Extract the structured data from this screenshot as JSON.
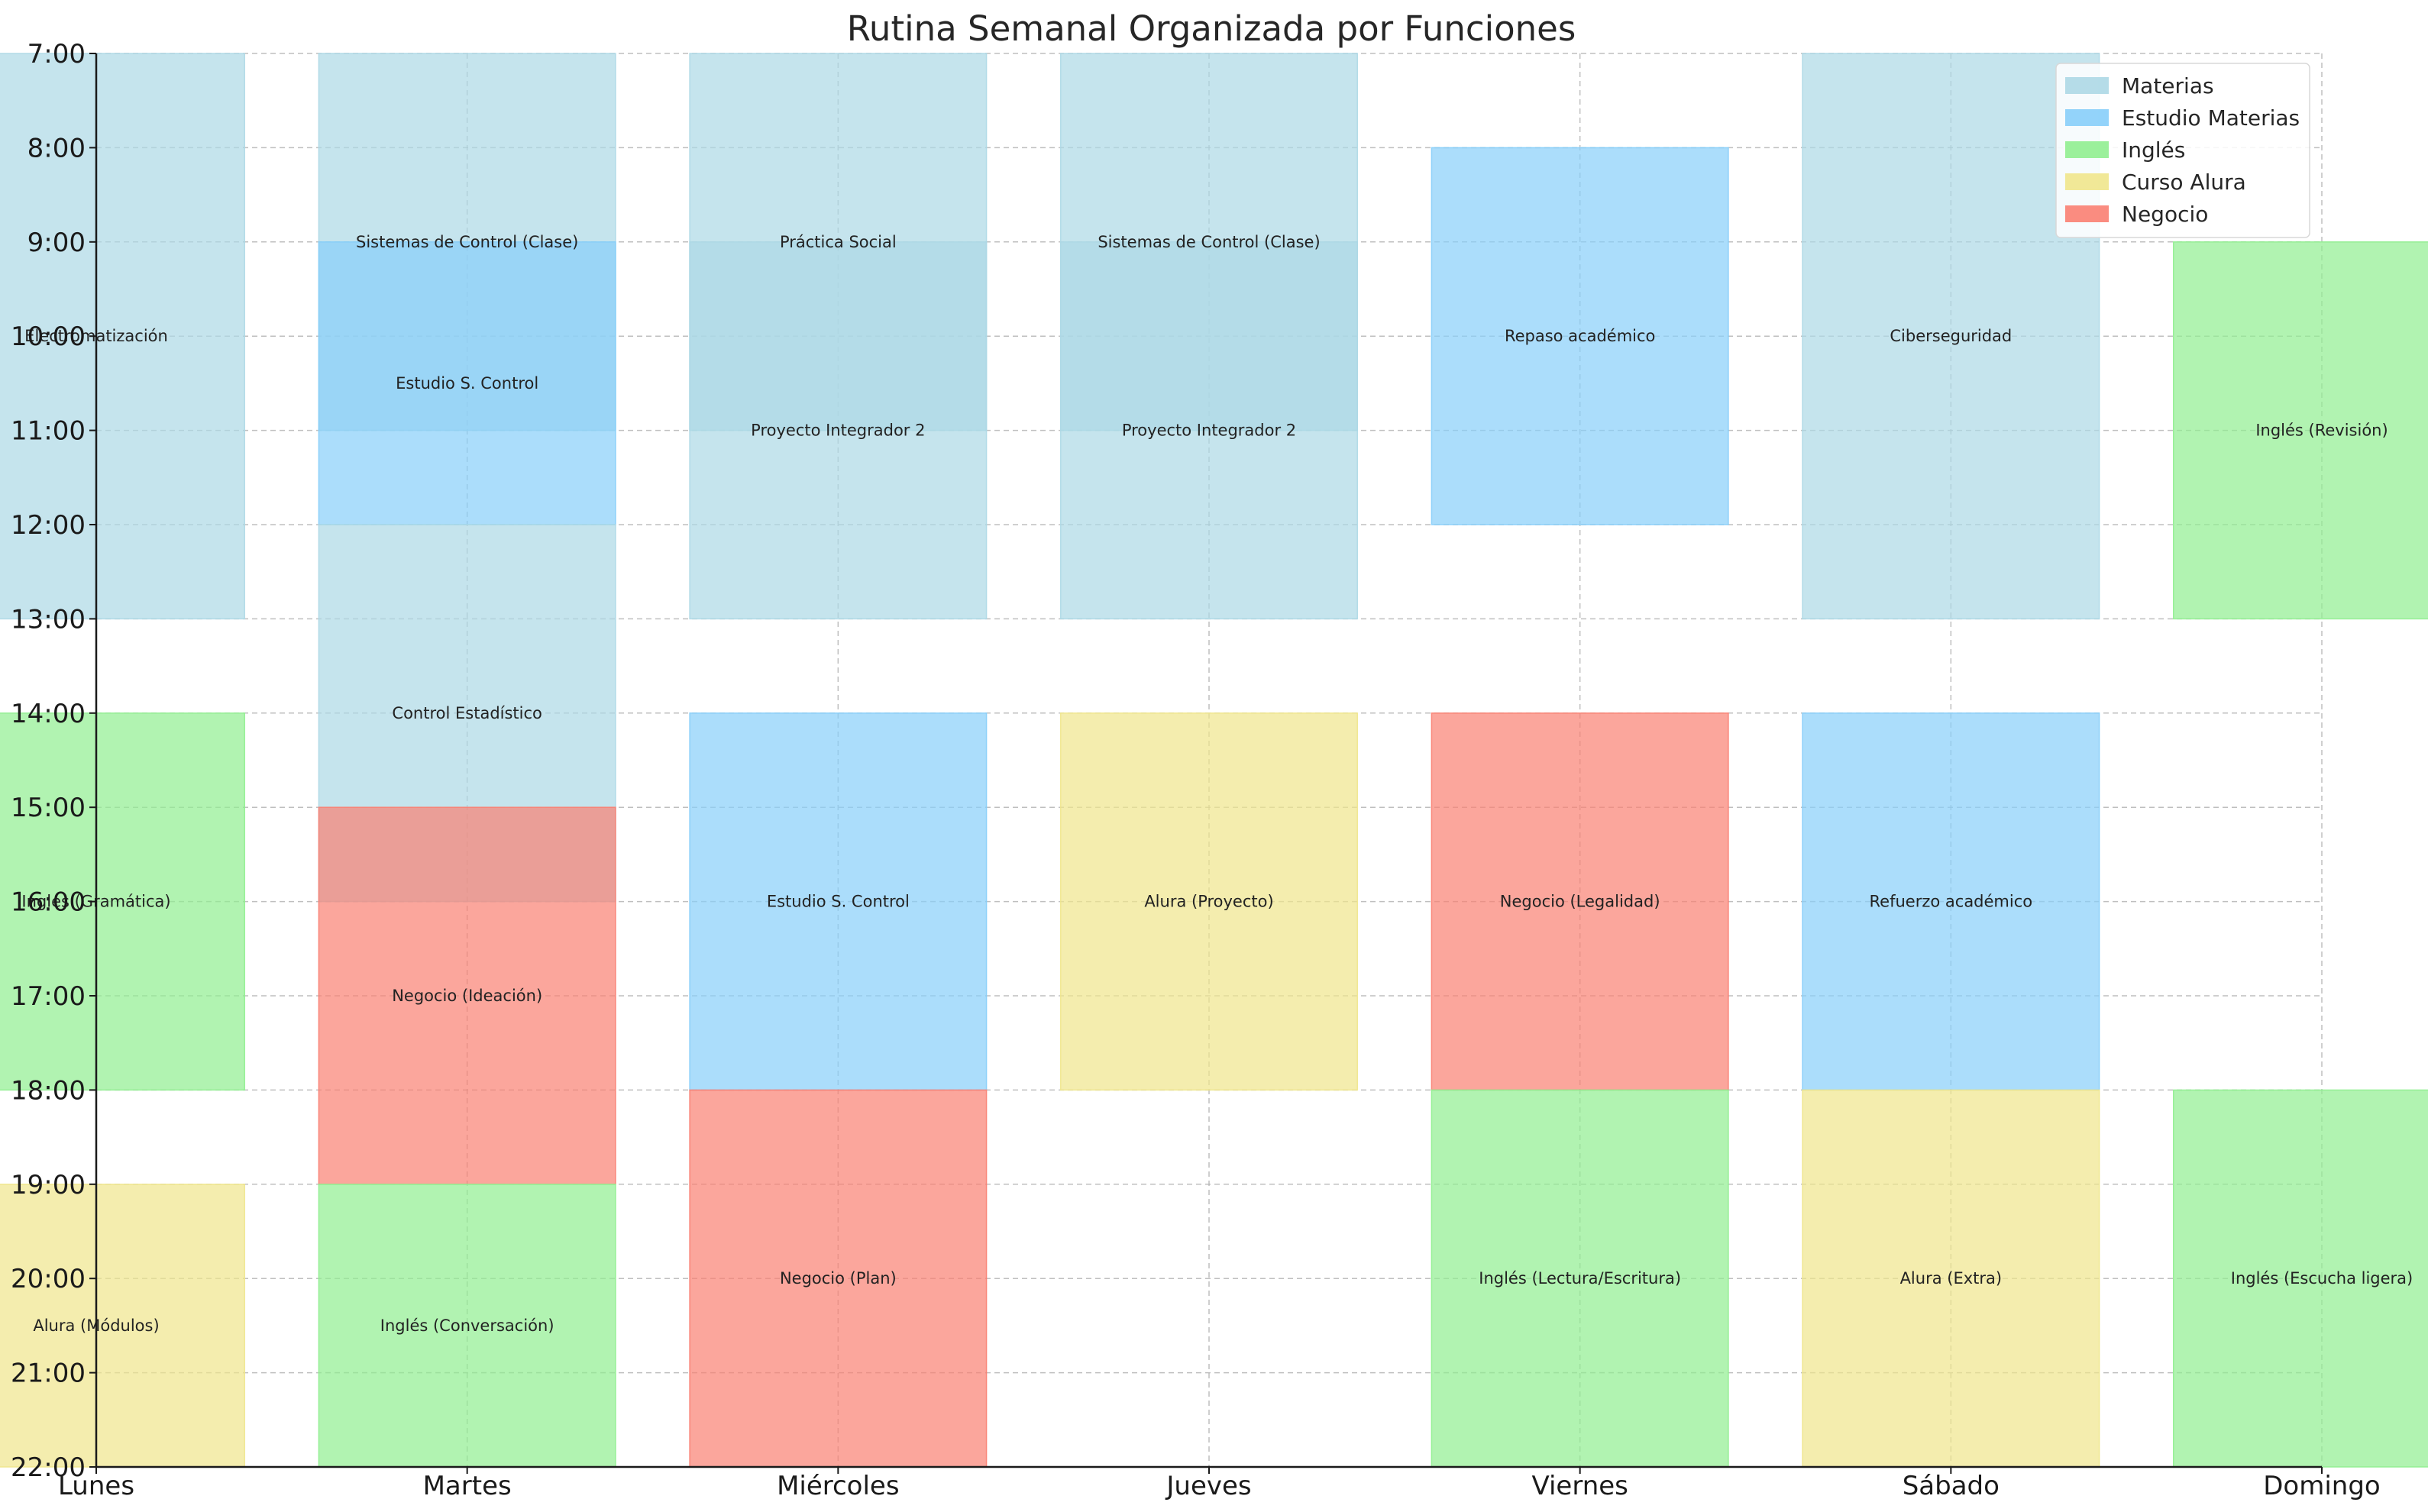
{
  "chart_data": {
    "type": "bar",
    "orientation": "vertical-timeline",
    "title": "Rutina Semanal Organizada por Funciones",
    "xlabel": "",
    "ylabel": "",
    "categories": [
      "Lunes",
      "Martes",
      "Miércoles",
      "Jueves",
      "Viernes",
      "Sábado",
      "Domingo"
    ],
    "y_ticks": [
      "7:00",
      "8:00",
      "9:00",
      "10:00",
      "11:00",
      "12:00",
      "13:00",
      "14:00",
      "15:00",
      "16:00",
      "17:00",
      "18:00",
      "19:00",
      "20:00",
      "21:00",
      "22:00"
    ],
    "ylim": [
      7,
      22
    ],
    "y_inverted": true,
    "grid": true,
    "legend_position": "top-right",
    "series": [
      {
        "name": "Materias",
        "color": "#add8e6"
      },
      {
        "name": "Estudio Materias",
        "color": "#87cefa"
      },
      {
        "name": "Inglés",
        "color": "#90ee90"
      },
      {
        "name": "Curso Alura",
        "color": "#f0e68c"
      },
      {
        "name": "Negocio",
        "color": "#fa8072"
      }
    ],
    "blocks": [
      {
        "day": "Lunes",
        "start": 7,
        "end": 13,
        "category": "Materias",
        "label": "Electromatización"
      },
      {
        "day": "Lunes",
        "start": 14,
        "end": 18,
        "category": "Inglés",
        "label": "Inglés (Gramática)"
      },
      {
        "day": "Lunes",
        "start": 19,
        "end": 22,
        "category": "Curso Alura",
        "label": "Alura (Módulos)"
      },
      {
        "day": "Martes",
        "start": 7,
        "end": 11,
        "category": "Materias",
        "label": "Sistemas de Control (Clase)"
      },
      {
        "day": "Martes",
        "start": 9,
        "end": 12,
        "category": "Estudio Materias",
        "label": "Estudio S. Control"
      },
      {
        "day": "Martes",
        "start": 12,
        "end": 16,
        "category": "Materias",
        "label": "Control Estadístico"
      },
      {
        "day": "Martes",
        "start": 15,
        "end": 19,
        "category": "Negocio",
        "label": "Negocio (Ideación)"
      },
      {
        "day": "Martes",
        "start": 19,
        "end": 22,
        "category": "Inglés",
        "label": "Inglés (Conversación)"
      },
      {
        "day": "Miércoles",
        "start": 7,
        "end": 11,
        "category": "Materias",
        "label": "Práctica Social"
      },
      {
        "day": "Miércoles",
        "start": 9,
        "end": 13,
        "category": "Materias",
        "label": "Proyecto Integrador 2"
      },
      {
        "day": "Miércoles",
        "start": 14,
        "end": 18,
        "category": "Estudio Materias",
        "label": "Estudio S. Control"
      },
      {
        "day": "Miércoles",
        "start": 18,
        "end": 22,
        "category": "Negocio",
        "label": "Negocio (Plan)"
      },
      {
        "day": "Jueves",
        "start": 7,
        "end": 11,
        "category": "Materias",
        "label": "Sistemas de Control (Clase)"
      },
      {
        "day": "Jueves",
        "start": 9,
        "end": 13,
        "category": "Materias",
        "label": "Proyecto Integrador 2"
      },
      {
        "day": "Jueves",
        "start": 14,
        "end": 18,
        "category": "Curso Alura",
        "label": "Alura (Proyecto)"
      },
      {
        "day": "Viernes",
        "start": 8,
        "end": 12,
        "category": "Estudio Materias",
        "label": "Repaso académico"
      },
      {
        "day": "Viernes",
        "start": 14,
        "end": 18,
        "category": "Negocio",
        "label": "Negocio (Legalidad)"
      },
      {
        "day": "Viernes",
        "start": 18,
        "end": 22,
        "category": "Inglés",
        "label": "Inglés (Lectura/Escritura)"
      },
      {
        "day": "Sábado",
        "start": 7,
        "end": 13,
        "category": "Materias",
        "label": "Ciberseguridad"
      },
      {
        "day": "Sábado",
        "start": 14,
        "end": 18,
        "category": "Estudio Materias",
        "label": "Refuerzo académico"
      },
      {
        "day": "Sábado",
        "start": 18,
        "end": 22,
        "category": "Curso Alura",
        "label": "Alura (Extra)"
      },
      {
        "day": "Domingo",
        "start": 9,
        "end": 13,
        "category": "Inglés",
        "label": "Inglés (Revisión)"
      },
      {
        "day": "Domingo",
        "start": 18,
        "end": 22,
        "category": "Inglés",
        "label": "Inglés (Escucha ligera)"
      }
    ]
  }
}
